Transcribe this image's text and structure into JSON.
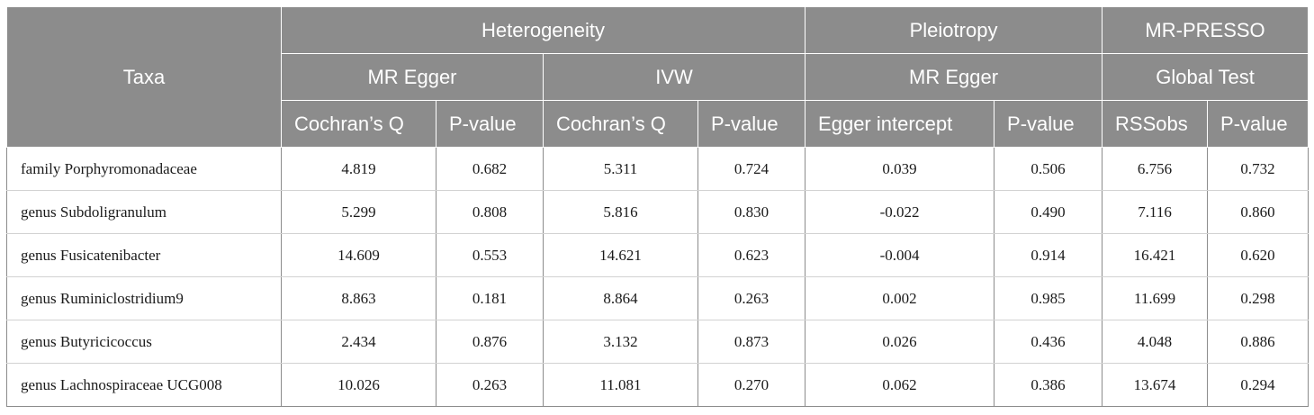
{
  "headers": {
    "taxa": "Taxa",
    "heterogeneity": "Heterogeneity",
    "pleiotropy": "Pleiotropy",
    "mr_presso": "MR-PRESSO",
    "mr_egger_het": "MR Egger",
    "ivw": "IVW",
    "mr_egger_pleio": "MR Egger",
    "global_test": "Global Test",
    "columns": [
      "Cochran’s Q",
      "P-value",
      "Cochran’s Q",
      "P-value",
      "Egger intercept",
      "P-value",
      "RSSobs",
      "P-value"
    ]
  },
  "rows": [
    {
      "taxa": "family Porphyromonadaceae",
      "values": [
        "4.819",
        "0.682",
        "5.311",
        "0.724",
        "0.039",
        "0.506",
        "6.756",
        "0.732"
      ]
    },
    {
      "taxa": "genus Subdoligranulum",
      "values": [
        "5.299",
        "0.808",
        "5.816",
        "0.830",
        "-0.022",
        "0.490",
        "7.116",
        "0.860"
      ]
    },
    {
      "taxa": "genus Fusicatenibacter",
      "values": [
        "14.609",
        "0.553",
        "14.621",
        "0.623",
        "-0.004",
        "0.914",
        "16.421",
        "0.620"
      ]
    },
    {
      "taxa": "genus Ruminiclostridium9",
      "values": [
        "8.863",
        "0.181",
        "8.864",
        "0.263",
        "0.002",
        "0.985",
        "11.699",
        "0.298"
      ]
    },
    {
      "taxa": "genus Butyricicoccus",
      "values": [
        "2.434",
        "0.876",
        "3.132",
        "0.873",
        "0.026",
        "0.436",
        "4.048",
        "0.886"
      ]
    },
    {
      "taxa": "genus Lachnospiraceae UCG008",
      "values": [
        "10.026",
        "0.263",
        "11.081",
        "0.270",
        "0.062",
        "0.386",
        "13.674",
        "0.294"
      ]
    }
  ]
}
